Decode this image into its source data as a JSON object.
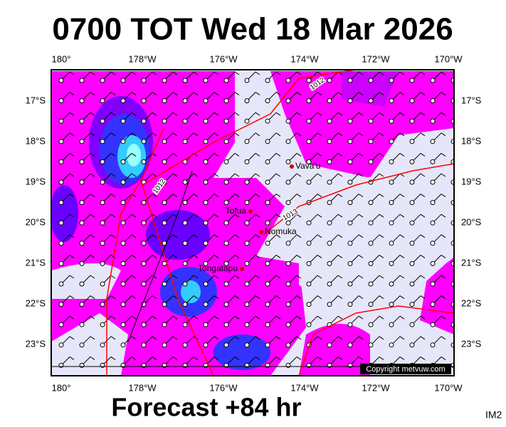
{
  "header": {
    "title": "0700 TOT Wed 18 Mar 2026"
  },
  "map": {
    "lon_labels": [
      "180°",
      "178°W",
      "176°W",
      "174°W",
      "172°W",
      "170°W"
    ],
    "lat_labels": [
      "17°S",
      "18°S",
      "19°S",
      "20°S",
      "21°S",
      "22°S",
      "23°S"
    ],
    "places": [
      "Vava'u",
      "Tofua",
      "Nomuka",
      "Tongatapu"
    ],
    "isobar_labels": [
      "1012",
      "1012",
      "1013"
    ]
  },
  "footer": {
    "forecast": "Forecast +84 hr",
    "copyright": "Copyright metvuw.com",
    "id": "IM2"
  }
}
